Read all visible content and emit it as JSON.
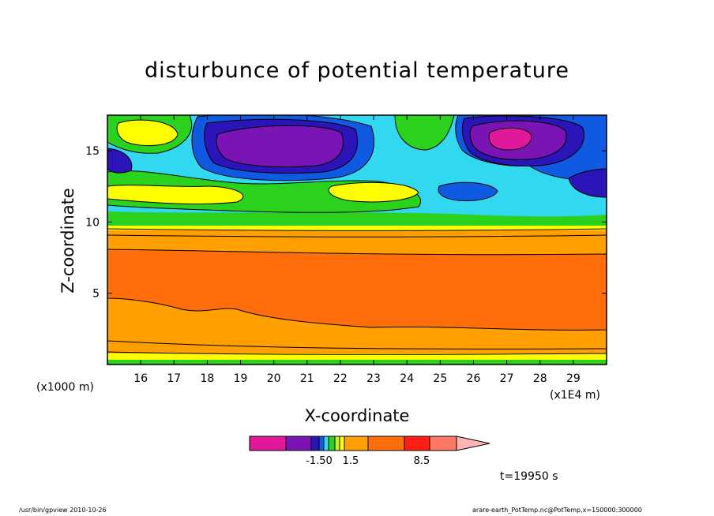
{
  "chart_data": {
    "type": "heatmap",
    "title": "disturbunce of potential temperature",
    "xlabel": "X-coordinate",
    "ylabel": "Z-coordinate",
    "x_unit_left": "(x1000 m)",
    "x_unit_right": "(x1E4 m)",
    "xlim": [
      15.0,
      30.0
    ],
    "ylim": [
      0.0,
      17.5
    ],
    "x_ticks": [
      16,
      17,
      18,
      19,
      20,
      21,
      22,
      23,
      24,
      25,
      26,
      27,
      28,
      29
    ],
    "y_ticks": [
      5,
      10,
      15
    ],
    "y_tick_labels": [
      "5",
      "10",
      "15"
    ],
    "x_tick_labels": [
      "16",
      "17",
      "18",
      "19",
      "20",
      "21",
      "22",
      "23",
      "24",
      "25",
      "26",
      "27",
      "28",
      "29"
    ],
    "colorbar": {
      "colors": [
        "#e0189a",
        "#7a14b4",
        "#2b14b8",
        "#0f5ae0",
        "#32d7f0",
        "#2ad21e",
        "#c8f01e",
        "#ffff00",
        "#ffa000",
        "#ff6e0a",
        "#ff1e14",
        "#ff7864",
        "#ffb4b4"
      ],
      "labels": [
        "-1.50",
        "1.5",
        "8.5"
      ]
    },
    "time_label": "t=19950 s"
  },
  "footer": {
    "left": "/usr/bin/gpview   2010-10-26",
    "right": "arare-earth_PotTemp.nc@PotTemp,x=150000:300000"
  }
}
